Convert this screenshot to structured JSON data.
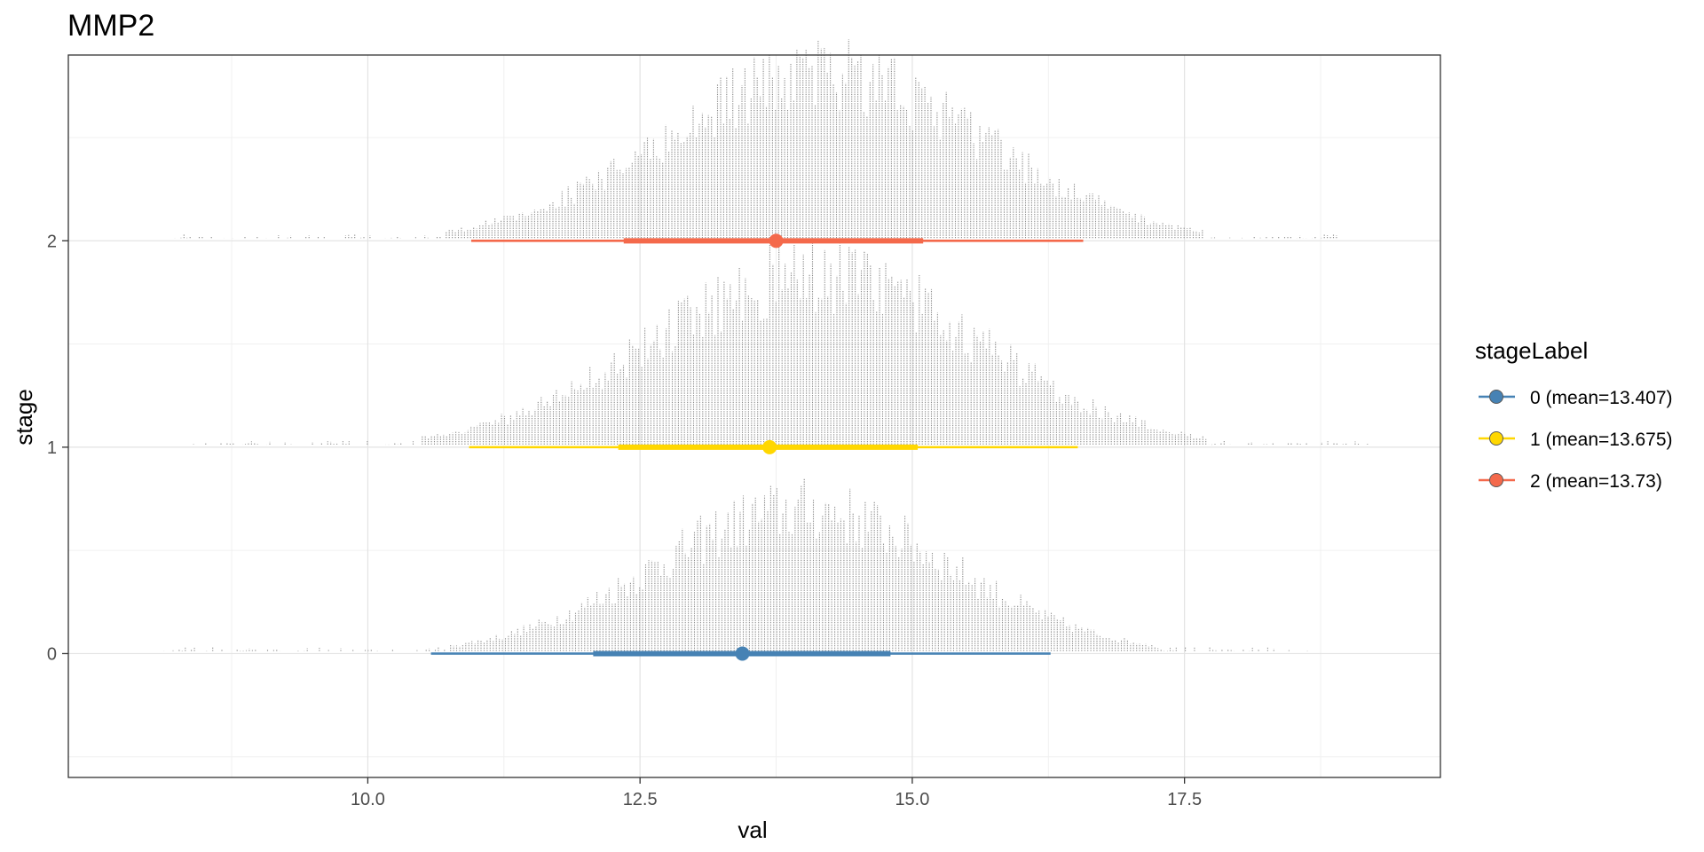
{
  "chart_data": {
    "type": "dotplot",
    "title": "MMP2",
    "xlabel": "val",
    "ylabel": "stage",
    "xlim": [
      7.25,
      19.85
    ],
    "ylim": [
      -0.6,
      2.9
    ],
    "x_ticks": [
      10.0,
      12.5,
      15.0,
      17.5
    ],
    "x_tick_labels": [
      "10.0",
      "12.5",
      "15.0",
      "17.5"
    ],
    "y_ticks": [
      0,
      1,
      2
    ],
    "y_tick_labels": [
      "0",
      "1",
      "2"
    ],
    "grid": true,
    "legend": {
      "title": "stageLabel",
      "placement": "right"
    },
    "series": [
      {
        "stage": 0,
        "name": "0 (mean=13.407)",
        "color": "#4682B4",
        "point": 13.44,
        "interval_inner": [
          12.07,
          14.8
        ],
        "interval_outer": [
          10.58,
          16.27
        ],
        "range": [
          8.1,
          18.8
        ],
        "peak": 14.0,
        "spread": 1.35,
        "max_height": 0.75
      },
      {
        "stage": 1,
        "name": "1 (mean=13.675)",
        "color": "#FFD700",
        "point": 13.69,
        "interval_inner": [
          12.3,
          15.05
        ],
        "interval_outer": [
          10.93,
          16.52
        ],
        "range": [
          8.4,
          19.2
        ],
        "peak": 14.1,
        "spread": 1.5,
        "max_height": 0.9
      },
      {
        "stage": 2,
        "name": "2 (mean=13.73)",
        "color": "#F4694B",
        "point": 13.75,
        "interval_inner": [
          12.35,
          15.1
        ],
        "interval_outer": [
          10.95,
          16.57
        ],
        "range": [
          8.2,
          18.9
        ],
        "peak": 14.2,
        "spread": 1.45,
        "max_height": 0.87
      }
    ]
  }
}
